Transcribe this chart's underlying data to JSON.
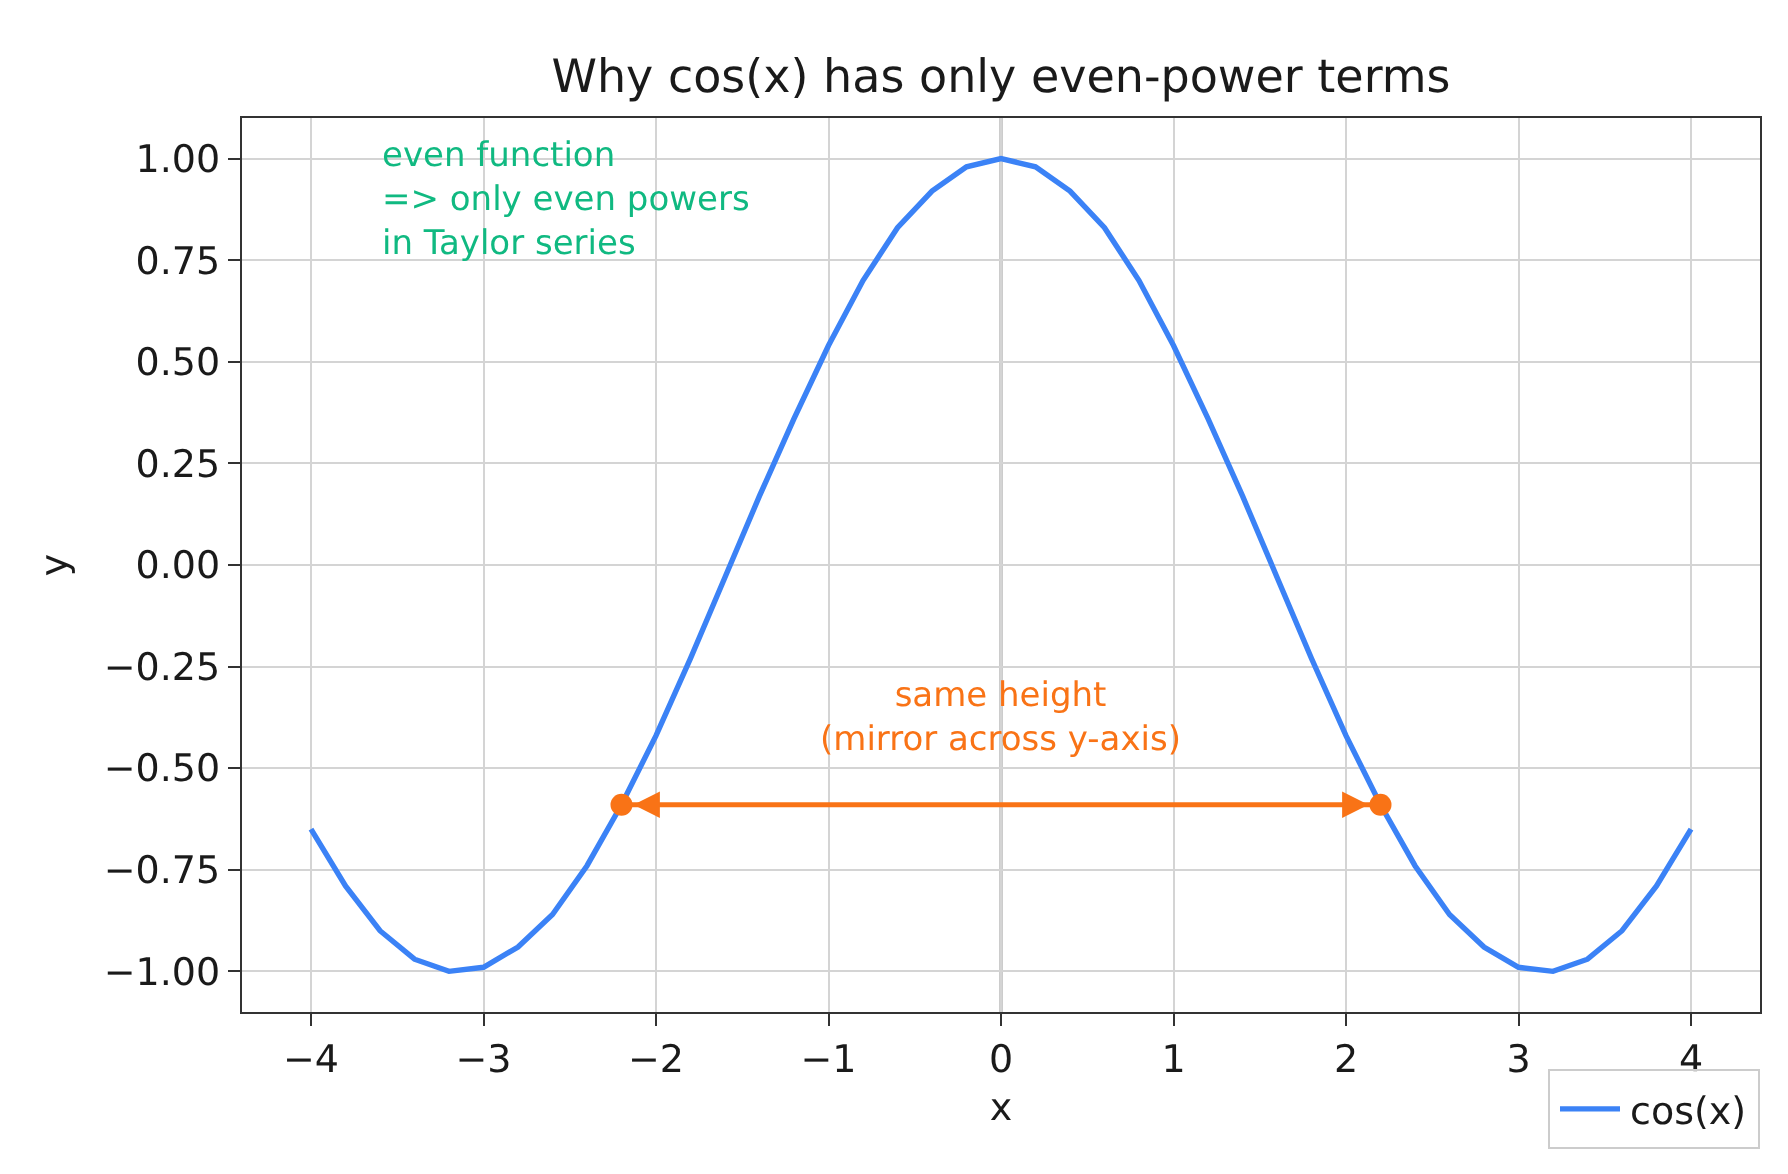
{
  "chart_data": {
    "type": "line",
    "title": "Why cos(x) has only even-power terms",
    "xlabel": "x",
    "ylabel": "y",
    "series": [
      {
        "name": "cos(x)",
        "color": "#3b82f6",
        "marker": "none",
        "x": [
          -4.0,
          -3.8,
          -3.6,
          -3.4,
          -3.2,
          -3.0,
          -2.8,
          -2.6,
          -2.4,
          -2.2,
          -2.0,
          -1.8,
          -1.6,
          -1.4,
          -1.2,
          -1.0,
          -0.8,
          -0.6,
          -0.4,
          -0.2,
          0.0,
          0.2,
          0.4,
          0.6,
          0.8,
          1.0,
          1.2,
          1.4,
          1.6,
          1.8,
          2.0,
          2.2,
          2.4,
          2.6,
          2.8,
          3.0,
          3.2,
          3.4,
          3.6,
          3.8,
          4.0
        ],
        "values": [
          -0.65,
          -0.79,
          -0.9,
          -0.97,
          -1.0,
          -0.99,
          -0.94,
          -0.86,
          -0.74,
          -0.59,
          -0.42,
          -0.23,
          -0.03,
          0.17,
          0.36,
          0.54,
          0.7,
          0.83,
          0.92,
          0.98,
          1.0,
          0.98,
          0.92,
          0.83,
          0.7,
          0.54,
          0.36,
          0.17,
          -0.03,
          -0.23,
          -0.42,
          -0.59,
          -0.74,
          -0.86,
          -0.94,
          -0.99,
          -1.0,
          -0.97,
          -0.9,
          -0.79,
          -0.65
        ]
      },
      {
        "color": "#f97316",
        "marker": "circle",
        "x": [
          -2.2,
          2.2
        ],
        "values": [
          -0.59,
          -0.59
        ]
      }
    ],
    "xlim": [
      -4.4,
      4.4
    ],
    "xticks": [
      {
        "value": -4,
        "label": "−4"
      },
      {
        "value": -3,
        "label": "−3"
      },
      {
        "value": -2,
        "label": "−2"
      },
      {
        "value": -1,
        "label": "−1"
      },
      0,
      1,
      2,
      3,
      4
    ],
    "ylim": [
      -1.1,
      1.1
    ],
    "yticks": [
      {
        "value": -1,
        "label": "−1.00"
      },
      {
        "value": -0.75,
        "label": "−0.75"
      },
      {
        "value": -0.5,
        "label": "−0.50"
      },
      {
        "value": -0.25,
        "label": "−0.25"
      },
      {
        "value": 0,
        "label": "0.00"
      },
      {
        "value": 0.25,
        "label": "0.25"
      },
      {
        "value": 0.5,
        "label": "0.50"
      },
      {
        "value": 0.75,
        "label": "0.75"
      },
      {
        "value": 1,
        "label": "1.00"
      }
    ],
    "ref_lines": [
      {
        "axis": "x",
        "value": 0,
        "color": "#808080"
      }
    ],
    "annotations": [
      "even function\n=> only even powers\nin Taylor series",
      {
        "text": "same height\n(mirror across y-axis)",
        "x": 0,
        "y": -0.49
      }
    ],
    "grid": true,
    "legend": "bottom right"
  }
}
